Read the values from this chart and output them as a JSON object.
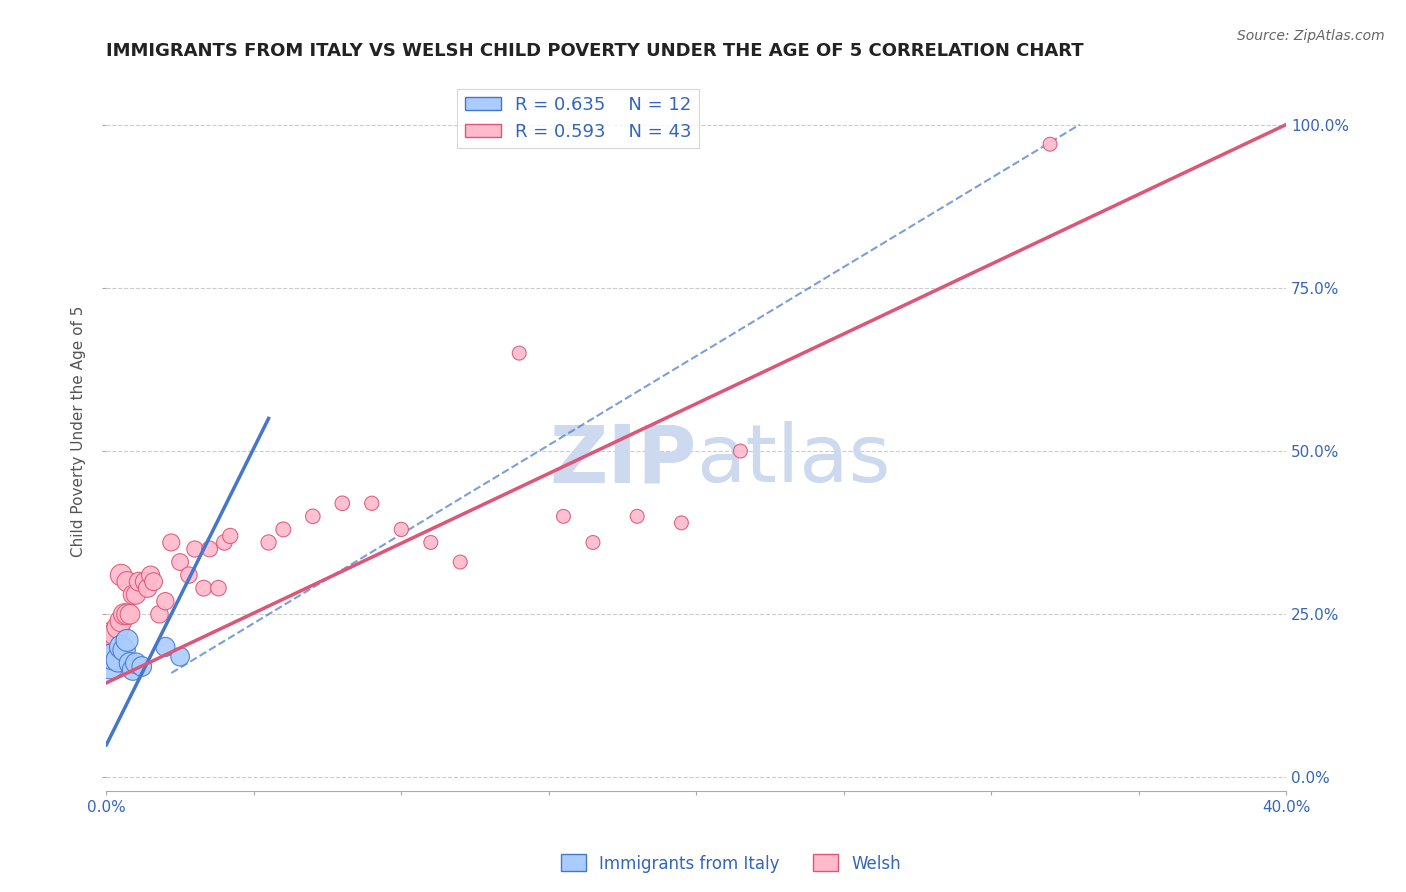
{
  "title": "IMMIGRANTS FROM ITALY VS WELSH CHILD POVERTY UNDER THE AGE OF 5 CORRELATION CHART",
  "source": "Source: ZipAtlas.com",
  "ylabel": "Child Poverty Under the Age of 5",
  "xlim": [
    0.0,
    0.4
  ],
  "ylim": [
    -0.02,
    1.08
  ],
  "xticks": [
    0.0,
    0.05,
    0.1,
    0.15,
    0.2,
    0.25,
    0.3,
    0.35,
    0.4
  ],
  "ytick_positions": [
    0.0,
    0.25,
    0.5,
    0.75,
    1.0
  ],
  "ytick_labels": [
    "0.0%",
    "25.0%",
    "50.0%",
    "75.0%",
    "100.0%"
  ],
  "grid_color": "#cccccc",
  "background_color": "#ffffff",
  "watermark_zip": "ZIP",
  "watermark_atlas": "atlas",
  "watermark_color": "#ccd9ee",
  "italy_color": "#aaccff",
  "italy_edge_color": "#4477cc",
  "welsh_color": "#ffbbcc",
  "welsh_edge_color": "#dd5577",
  "italy_R": 0.635,
  "italy_N": 12,
  "welsh_R": 0.593,
  "welsh_N": 43,
  "legend_text_color": "#3366bb",
  "italy_scatter_x": [
    0.001,
    0.002,
    0.004,
    0.005,
    0.006,
    0.007,
    0.008,
    0.009,
    0.01,
    0.012,
    0.02,
    0.025
  ],
  "italy_scatter_y": [
    0.175,
    0.185,
    0.18,
    0.2,
    0.195,
    0.21,
    0.175,
    0.165,
    0.175,
    0.17,
    0.2,
    0.185
  ],
  "italy_scatter_size": [
    500,
    350,
    300,
    280,
    260,
    250,
    240,
    230,
    220,
    200,
    190,
    180
  ],
  "welsh_scatter_x": [
    0.001,
    0.002,
    0.003,
    0.004,
    0.005,
    0.005,
    0.006,
    0.007,
    0.007,
    0.008,
    0.009,
    0.01,
    0.011,
    0.013,
    0.014,
    0.015,
    0.016,
    0.018,
    0.02,
    0.022,
    0.025,
    0.028,
    0.03,
    0.033,
    0.035,
    0.038,
    0.04,
    0.042,
    0.055,
    0.06,
    0.07,
    0.08,
    0.09,
    0.1,
    0.11,
    0.12,
    0.14,
    0.155,
    0.165,
    0.18,
    0.195,
    0.215,
    0.32
  ],
  "welsh_scatter_y": [
    0.2,
    0.22,
    0.22,
    0.23,
    0.24,
    0.31,
    0.25,
    0.25,
    0.3,
    0.25,
    0.28,
    0.28,
    0.3,
    0.3,
    0.29,
    0.31,
    0.3,
    0.25,
    0.27,
    0.36,
    0.33,
    0.31,
    0.35,
    0.29,
    0.35,
    0.29,
    0.36,
    0.37,
    0.36,
    0.38,
    0.4,
    0.42,
    0.42,
    0.38,
    0.36,
    0.33,
    0.65,
    0.4,
    0.36,
    0.4,
    0.39,
    0.5,
    0.97
  ],
  "welsh_scatter_size": [
    500,
    300,
    280,
    260,
    250,
    240,
    230,
    220,
    210,
    200,
    195,
    190,
    185,
    180,
    175,
    170,
    165,
    160,
    155,
    150,
    145,
    140,
    135,
    130,
    130,
    125,
    125,
    120,
    120,
    115,
    110,
    110,
    105,
    105,
    100,
    100,
    100,
    100,
    100,
    100,
    100,
    100,
    100
  ],
  "italy_line_x": [
    0.0,
    0.055
  ],
  "italy_line_y": [
    0.05,
    0.55
  ],
  "welsh_line_x": [
    0.0,
    0.4
  ],
  "welsh_line_y": [
    0.145,
    1.0
  ],
  "diag_line_x": [
    0.022,
    0.33
  ],
  "diag_line_y": [
    0.16,
    1.0
  ],
  "title_fontsize": 13,
  "axis_label_fontsize": 11,
  "tick_fontsize": 11,
  "legend_fontsize": 13
}
